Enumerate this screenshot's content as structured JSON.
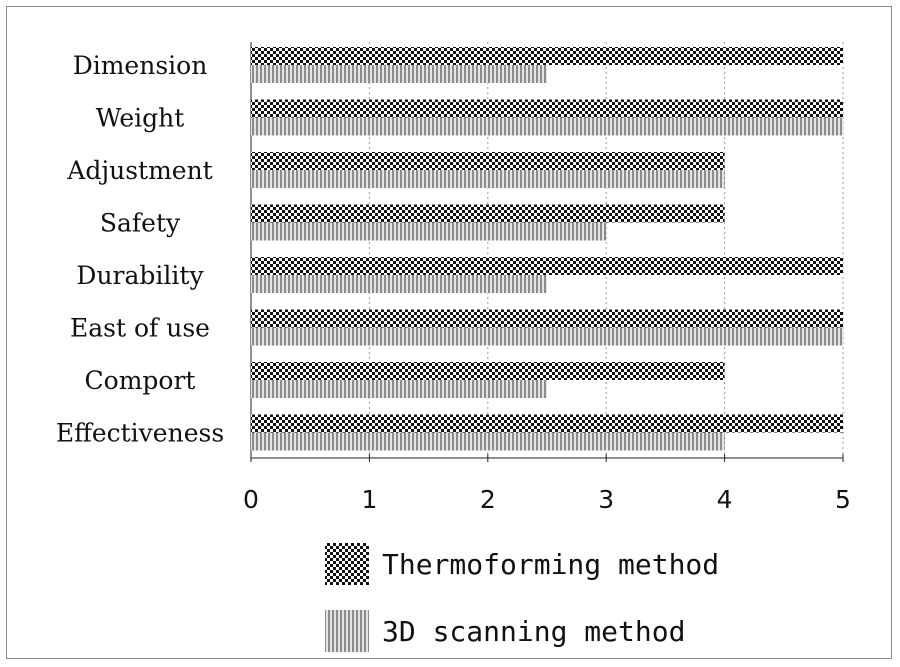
{
  "chart_data": {
    "type": "bar",
    "orientation": "horizontal",
    "categories": [
      "Dimension",
      "Weight",
      "Adjustment",
      "Safety",
      "Durability",
      "East of use",
      "Comport",
      "Effectiveness"
    ],
    "series": [
      {
        "name": "Thermoforming method",
        "values": [
          5,
          5,
          4,
          4,
          5,
          5,
          4,
          5
        ]
      },
      {
        "name": "3D scanning method",
        "values": [
          2.5,
          5,
          4,
          3,
          2.5,
          5,
          2.5,
          4
        ]
      }
    ],
    "xlim": [
      0,
      5
    ],
    "xticks": [
      "0",
      "1",
      "2",
      "3",
      "4",
      "5"
    ],
    "grid": "vertical-dotted",
    "legend_position": "bottom"
  }
}
